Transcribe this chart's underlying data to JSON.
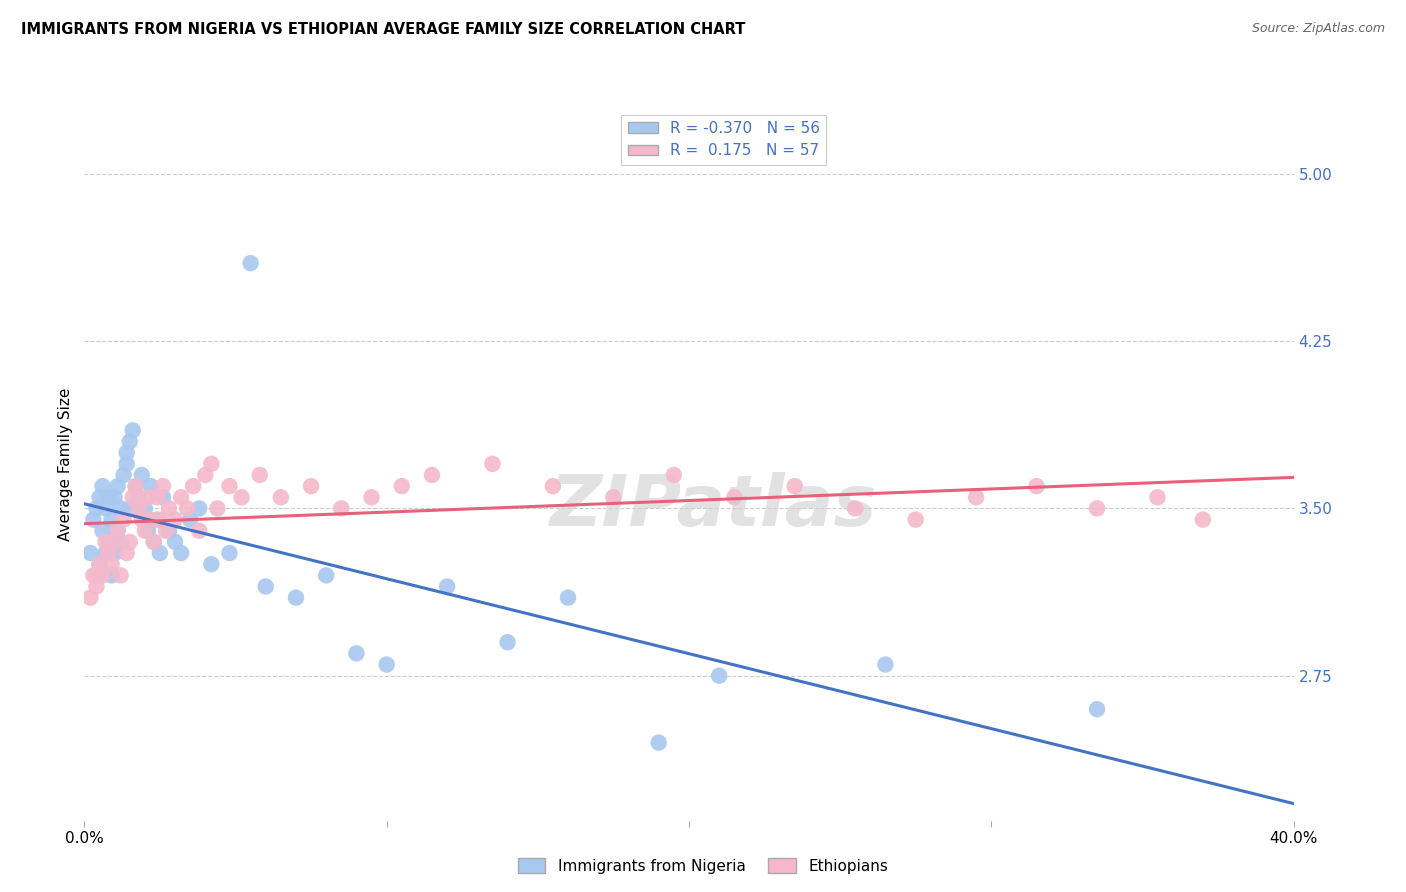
{
  "title": "IMMIGRANTS FROM NIGERIA VS ETHIOPIAN AVERAGE FAMILY SIZE CORRELATION CHART",
  "source": "Source: ZipAtlas.com",
  "ylabel": "Average Family Size",
  "yticks": [
    2.75,
    3.5,
    4.25,
    5.0
  ],
  "xlim": [
    0.0,
    0.4
  ],
  "ylim": [
    2.1,
    5.3
  ],
  "nigeria_R": "-0.370",
  "nigeria_N": "56",
  "ethiopia_R": "0.175",
  "ethiopia_N": "57",
  "nigeria_color": "#a8c8f0",
  "ethiopia_color": "#f5b8cb",
  "nigeria_line_color": "#4472c4",
  "ethiopia_line_color": "#e8607a",
  "nigeria_x": [
    0.002,
    0.003,
    0.004,
    0.004,
    0.005,
    0.005,
    0.006,
    0.006,
    0.007,
    0.007,
    0.008,
    0.008,
    0.009,
    0.009,
    0.01,
    0.01,
    0.011,
    0.011,
    0.012,
    0.012,
    0.013,
    0.014,
    0.014,
    0.015,
    0.015,
    0.016,
    0.017,
    0.018,
    0.019,
    0.02,
    0.021,
    0.022,
    0.023,
    0.024,
    0.025,
    0.026,
    0.028,
    0.03,
    0.032,
    0.035,
    0.038,
    0.042,
    0.048,
    0.055,
    0.06,
    0.07,
    0.08,
    0.09,
    0.1,
    0.12,
    0.14,
    0.16,
    0.19,
    0.21,
    0.265,
    0.335
  ],
  "nigeria_y": [
    3.3,
    3.45,
    3.5,
    3.2,
    3.55,
    3.25,
    3.6,
    3.4,
    3.3,
    3.5,
    3.35,
    3.55,
    3.2,
    3.45,
    3.3,
    3.55,
    3.4,
    3.6,
    3.35,
    3.5,
    3.65,
    3.7,
    3.75,
    3.8,
    3.5,
    3.85,
    3.6,
    3.55,
    3.65,
    3.5,
    3.4,
    3.6,
    3.35,
    3.45,
    3.3,
    3.55,
    3.4,
    3.35,
    3.3,
    3.45,
    3.5,
    3.25,
    3.3,
    4.6,
    3.15,
    3.1,
    3.2,
    2.85,
    2.8,
    3.15,
    2.9,
    3.1,
    2.45,
    2.75,
    2.8,
    2.6
  ],
  "ethiopia_x": [
    0.002,
    0.003,
    0.004,
    0.005,
    0.006,
    0.007,
    0.008,
    0.009,
    0.01,
    0.011,
    0.012,
    0.013,
    0.014,
    0.015,
    0.016,
    0.017,
    0.018,
    0.019,
    0.02,
    0.021,
    0.022,
    0.023,
    0.024,
    0.025,
    0.026,
    0.027,
    0.028,
    0.03,
    0.032,
    0.034,
    0.036,
    0.038,
    0.04,
    0.042,
    0.044,
    0.048,
    0.052,
    0.058,
    0.065,
    0.075,
    0.085,
    0.095,
    0.105,
    0.115,
    0.135,
    0.155,
    0.175,
    0.195,
    0.215,
    0.235,
    0.255,
    0.275,
    0.295,
    0.315,
    0.335,
    0.355,
    0.37
  ],
  "ethiopia_y": [
    3.1,
    3.2,
    3.15,
    3.25,
    3.2,
    3.35,
    3.3,
    3.25,
    3.35,
    3.4,
    3.2,
    3.45,
    3.3,
    3.35,
    3.55,
    3.6,
    3.5,
    3.45,
    3.4,
    3.55,
    3.45,
    3.35,
    3.55,
    3.45,
    3.6,
    3.4,
    3.5,
    3.45,
    3.55,
    3.5,
    3.6,
    3.4,
    3.65,
    3.7,
    3.5,
    3.6,
    3.55,
    3.65,
    3.55,
    3.6,
    3.5,
    3.55,
    3.6,
    3.65,
    3.7,
    3.6,
    3.55,
    3.65,
    3.55,
    3.6,
    3.5,
    3.45,
    3.55,
    3.6,
    3.5,
    3.55,
    3.45
  ],
  "watermark": "ZIPatlas",
  "title_fontsize": 10.5,
  "tick_fontsize": 11,
  "legend_fontsize": 11
}
